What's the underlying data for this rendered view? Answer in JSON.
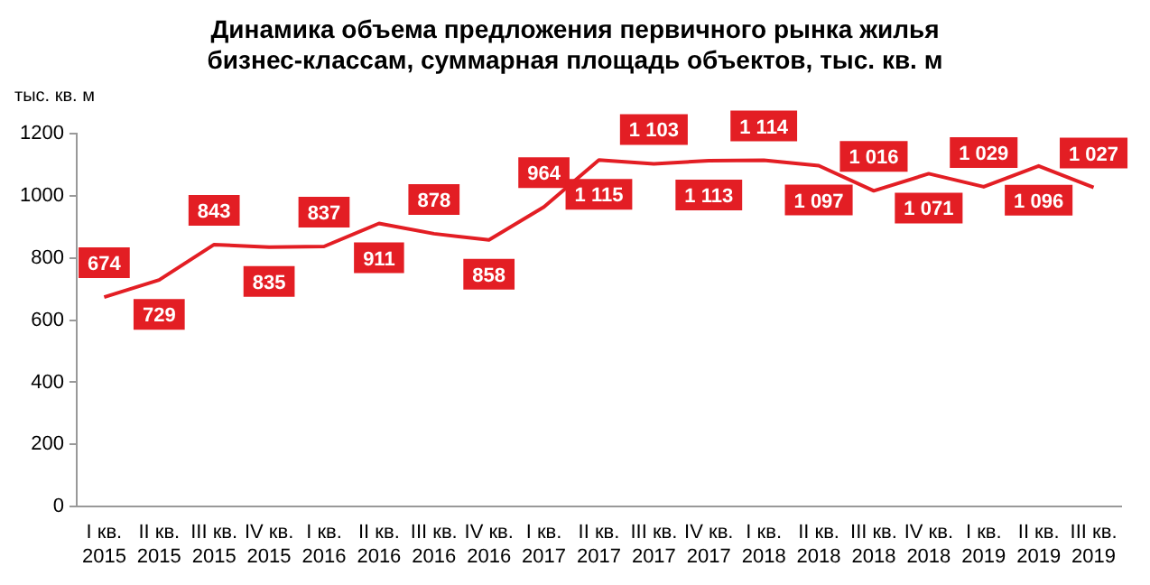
{
  "chart_data": {
    "type": "line",
    "title": "Динамика объема предложения первичного рынка жилья бизнес-классам, суммарная площадь объектов, тыс. кв. м",
    "ylabel": "тыс. кв. м",
    "categories": [
      "I кв. 2015",
      "II кв. 2015",
      "III кв. 2015",
      "IV кв. 2015",
      "I кв. 2016",
      "II кв. 2016",
      "III кв. 2016",
      "IV кв. 2016",
      "I кв. 2017",
      "II кв. 2017",
      "III кв. 2017",
      "IV кв. 2017",
      "I кв. 2018",
      "II кв. 2018",
      "III кв. 2018",
      "IV кв. 2018",
      "I кв. 2019",
      "II кв. 2019",
      "III кв. 2019"
    ],
    "series": [
      {
        "color": "#e31e24",
        "values": [
          674,
          729,
          843,
          835,
          837,
          911,
          878,
          858,
          964,
          1115,
          1103,
          1113,
          1114,
          1097,
          1016,
          1071,
          1029,
          1096,
          1027
        ],
        "value_labels": [
          "674",
          "729",
          "843",
          "835",
          "837",
          "911",
          "878",
          "858",
          "964",
          "1 115",
          "1 103",
          "1 113",
          "1 114",
          "1 097",
          "1 016",
          "1 071",
          "1 029",
          "1 096",
          "1 027"
        ]
      }
    ],
    "ylim": [
      0,
      1200
    ],
    "yticks": [
      0,
      200,
      400,
      600,
      800,
      1000,
      1200
    ],
    "grid": false,
    "legend": false,
    "marker": "none",
    "line_style": "solid"
  }
}
